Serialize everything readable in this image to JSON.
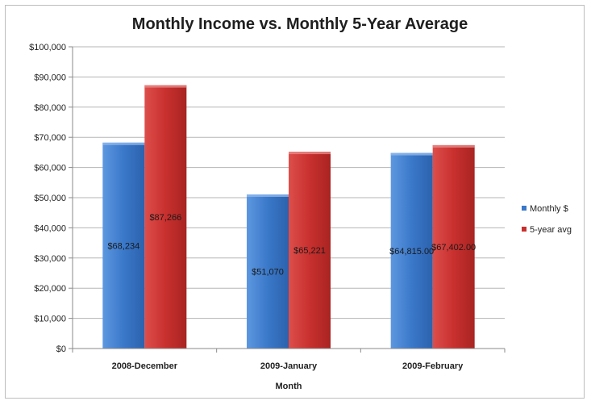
{
  "chart_data": {
    "type": "bar",
    "title": "Monthly Income vs. Monthly 5-Year Average",
    "xlabel": "Month",
    "ylabel": "",
    "categories": [
      "2008-December",
      "2009-January",
      "2009-February"
    ],
    "series": [
      {
        "name": "Monthly $",
        "color": "#3a78c9",
        "values": [
          68234,
          51070,
          64815
        ],
        "labels": [
          "$68,234",
          "$51,070",
          "$64,815.00"
        ]
      },
      {
        "name": "5-year avg",
        "color": "#c8302e",
        "values": [
          87266,
          65221,
          67402
        ],
        "labels": [
          "$87,266",
          "$65,221",
          "$67,402.00"
        ]
      }
    ],
    "ylim": [
      0,
      100000
    ],
    "yticks": [
      0,
      10000,
      20000,
      30000,
      40000,
      50000,
      60000,
      70000,
      80000,
      90000,
      100000
    ],
    "ytick_labels": [
      "$0",
      "$10,000",
      "$20,000",
      "$30,000",
      "$40,000",
      "$50,000",
      "$60,000",
      "$70,000",
      "$80,000",
      "$90,000",
      "$100,000"
    ],
    "grid": true,
    "legend_position": "right"
  }
}
